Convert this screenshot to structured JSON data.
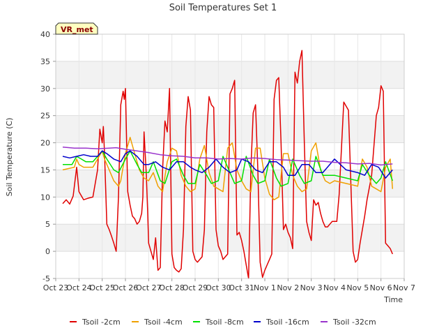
{
  "chart_data": {
    "type": "line",
    "title": "Soil Temperatures Set 1",
    "xlabel": "Time",
    "ylabel": "Soil Temperature (C)",
    "ylim": [
      -5,
      40
    ],
    "xlim": [
      0,
      15
    ],
    "yticks": [
      -5,
      0,
      5,
      10,
      15,
      20,
      25,
      30,
      35,
      40
    ],
    "xtick_labels": [
      "Oct 23",
      "Oct 24",
      "Oct 25",
      "Oct 26",
      "Oct 27",
      "Oct 28",
      "Oct 29",
      "Oct 30",
      "Oct 31",
      "Nov 1",
      "Nov 2",
      "Nov 3",
      "Nov 4",
      "Nov 5",
      "Nov 6",
      "Nov 7"
    ],
    "badge": "VR_met",
    "grid": true,
    "legend_position": "bottom",
    "series": [
      {
        "name": "Tsoil -2cm",
        "color": "#e00000",
        "x": [
          0.3,
          0.45,
          0.6,
          0.75,
          0.9,
          1.0,
          1.2,
          1.4,
          1.6,
          1.8,
          1.9,
          2.0,
          2.05,
          2.1,
          2.2,
          2.3,
          2.4,
          2.5,
          2.6,
          2.7,
          2.8,
          2.9,
          2.95,
          3.0,
          3.1,
          3.2,
          3.3,
          3.4,
          3.5,
          3.6,
          3.7,
          3.75,
          3.8,
          3.9,
          3.95,
          4.0,
          4.2,
          4.3,
          4.4,
          4.5,
          4.6,
          4.7,
          4.8,
          4.9,
          5.0,
          5.1,
          5.2,
          5.3,
          5.4,
          5.5,
          5.6,
          5.7,
          5.8,
          5.9,
          6.0,
          6.1,
          6.2,
          6.3,
          6.4,
          6.5,
          6.6,
          6.7,
          6.8,
          6.9,
          7.0,
          7.1,
          7.2,
          7.3,
          7.4,
          7.5,
          7.6,
          7.7,
          7.8,
          7.9,
          8.0,
          8.1,
          8.2,
          8.3,
          8.4,
          8.5,
          8.6,
          8.7,
          8.8,
          8.9,
          9.0,
          9.1,
          9.2,
          9.3,
          9.4,
          9.5,
          9.6,
          9.7,
          9.8,
          9.9,
          10.0,
          10.1,
          10.2,
          10.3,
          10.4,
          10.5,
          10.6,
          10.7,
          10.8,
          10.9,
          11.0,
          11.1,
          11.2,
          11.3,
          11.4,
          11.5,
          11.6,
          11.7,
          11.8,
          11.9,
          12.0,
          12.1,
          12.2,
          12.4,
          12.6,
          12.8,
          12.9,
          13.0,
          13.1,
          13.2,
          13.3,
          13.4,
          13.6,
          13.8,
          13.9,
          14.0,
          14.1,
          14.2,
          14.3,
          14.4,
          14.5
        ],
        "y": [
          8.8,
          9.5,
          8.7,
          10.2,
          15.5,
          11.0,
          9.5,
          9.8,
          10.0,
          15.0,
          22.5,
          20.0,
          23.0,
          18.0,
          5.0,
          4.0,
          2.8,
          1.5,
          0.0,
          10.0,
          27.0,
          29.5,
          28.0,
          30.0,
          11.0,
          8.5,
          6.5,
          6.0,
          5.0,
          5.5,
          7.0,
          10.0,
          22.0,
          14.0,
          8.0,
          1.5,
          -1.5,
          2.5,
          -3.5,
          -3.0,
          15.0,
          24.0,
          22.0,
          30.0,
          -0.5,
          -3.0,
          -3.5,
          -3.8,
          -3.2,
          4.0,
          23.0,
          28.5,
          26.0,
          0.0,
          -1.5,
          -2.0,
          -1.5,
          -1.0,
          4.0,
          22.0,
          28.5,
          27.0,
          26.5,
          4.0,
          1.0,
          0.0,
          -1.5,
          -1.0,
          -0.5,
          29.0,
          30.0,
          31.5,
          3.0,
          3.5,
          2.0,
          0.0,
          -2.5,
          -5.0,
          15.0,
          25.5,
          27.0,
          15.0,
          -2.0,
          -4.8,
          -3.5,
          -2.5,
          -1.5,
          -0.5,
          28.0,
          31.5,
          32.0,
          20.0,
          4.0,
          5.0,
          3.5,
          2.5,
          0.5,
          33.0,
          31.0,
          35.0,
          37.0,
          20.0,
          5.5,
          3.5,
          2.0,
          9.5,
          8.5,
          9.0,
          7.0,
          5.5,
          4.5,
          4.5,
          5.0,
          5.5,
          5.5,
          5.5,
          10.5,
          27.5,
          26.0,
          0.0,
          -2.0,
          -1.5,
          1.5,
          4.0,
          6.5,
          9.5,
          14.0,
          25.0,
          26.5,
          30.5,
          29.5,
          1.5,
          1.0,
          0.5,
          -0.5
        ]
      },
      {
        "name": "Tsoil -4cm",
        "color": "#f0a000",
        "x": [
          0.3,
          0.8,
          0.9,
          1.0,
          1.2,
          1.6,
          1.8,
          2.0,
          2.1,
          2.3,
          2.5,
          2.7,
          2.8,
          3.0,
          3.2,
          3.4,
          3.6,
          3.8,
          4.0,
          4.2,
          4.4,
          4.6,
          4.8,
          5.0,
          5.2,
          5.4,
          5.6,
          5.8,
          6.0,
          6.2,
          6.4,
          6.6,
          6.8,
          7.0,
          7.2,
          7.4,
          7.6,
          7.8,
          8.0,
          8.2,
          8.4,
          8.6,
          8.8,
          9.0,
          9.2,
          9.4,
          9.6,
          9.8,
          10.0,
          10.2,
          10.4,
          10.6,
          10.8,
          11.0,
          11.2,
          11.4,
          11.6,
          11.8,
          12.0,
          12.5,
          13.0,
          13.2,
          13.4,
          13.6,
          13.8,
          14.0,
          14.2,
          14.4,
          14.5
        ],
        "y": [
          15.0,
          15.5,
          17.0,
          16.0,
          15.5,
          15.5,
          17.0,
          18.5,
          17.0,
          15.0,
          13.0,
          12.0,
          13.0,
          18.0,
          21.0,
          18.0,
          15.0,
          13.5,
          13.0,
          14.5,
          12.0,
          11.0,
          16.5,
          19.0,
          18.5,
          14.0,
          12.0,
          11.0,
          11.5,
          17.0,
          19.5,
          14.5,
          12.0,
          11.5,
          11.0,
          19.0,
          20.0,
          15.0,
          13.0,
          11.5,
          11.0,
          19.0,
          19.0,
          13.5,
          10.5,
          9.5,
          10.0,
          18.0,
          18.0,
          14.0,
          12.0,
          11.0,
          11.5,
          18.5,
          20.0,
          15.0,
          13.0,
          12.5,
          13.0,
          12.5,
          12.0,
          17.0,
          15.5,
          12.0,
          11.5,
          11.0,
          15.5,
          17.0,
          11.5
        ]
      },
      {
        "name": "Tsoil -8cm",
        "color": "#00e000",
        "x": [
          0.3,
          0.7,
          0.9,
          1.1,
          1.3,
          1.6,
          1.8,
          2.0,
          2.2,
          2.5,
          2.7,
          3.0,
          3.2,
          3.5,
          3.7,
          4.0,
          4.2,
          4.5,
          4.7,
          5.0,
          5.2,
          5.5,
          5.7,
          6.0,
          6.2,
          6.5,
          6.7,
          7.0,
          7.2,
          7.5,
          7.7,
          8.0,
          8.2,
          8.5,
          8.7,
          9.0,
          9.2,
          9.5,
          9.7,
          10.0,
          10.2,
          10.5,
          10.7,
          11.0,
          11.2,
          11.5,
          12.0,
          12.5,
          13.0,
          13.2,
          13.5,
          13.8,
          14.0,
          14.2,
          14.5
        ],
        "y": [
          16.0,
          16.0,
          17.5,
          17.0,
          16.5,
          16.5,
          17.5,
          18.5,
          17.0,
          15.0,
          14.5,
          17.0,
          18.5,
          16.0,
          14.5,
          14.5,
          16.5,
          13.0,
          12.5,
          16.5,
          17.0,
          14.0,
          12.5,
          12.5,
          16.0,
          14.0,
          12.5,
          13.0,
          17.5,
          14.5,
          12.5,
          13.0,
          17.5,
          14.0,
          12.5,
          13.0,
          17.0,
          13.5,
          12.0,
          12.5,
          17.0,
          14.0,
          12.5,
          13.0,
          17.5,
          14.0,
          14.0,
          13.5,
          13.0,
          16.0,
          14.0,
          12.5,
          13.5,
          16.5,
          13.0
        ]
      },
      {
        "name": "Tsoil -16cm",
        "color": "#0000cc",
        "x": [
          0.3,
          0.6,
          0.9,
          1.2,
          1.5,
          1.8,
          2.0,
          2.2,
          2.5,
          2.8,
          3.0,
          3.2,
          3.5,
          3.8,
          4.0,
          4.3,
          4.6,
          4.9,
          5.2,
          5.5,
          5.8,
          6.0,
          6.3,
          6.6,
          6.9,
          7.2,
          7.5,
          7.8,
          8.0,
          8.3,
          8.6,
          8.9,
          9.2,
          9.5,
          9.8,
          10.0,
          10.3,
          10.6,
          10.9,
          11.2,
          11.5,
          12.0,
          12.5,
          13.0,
          13.3,
          13.6,
          13.9,
          14.2,
          14.5
        ],
        "y": [
          17.5,
          17.2,
          17.5,
          17.8,
          17.5,
          17.5,
          18.5,
          18.0,
          17.0,
          16.5,
          18.0,
          18.5,
          17.5,
          16.0,
          16.0,
          16.5,
          15.5,
          15.0,
          16.5,
          16.5,
          15.5,
          15.0,
          14.5,
          15.5,
          17.0,
          15.5,
          14.5,
          15.0,
          17.0,
          16.5,
          15.0,
          14.5,
          16.5,
          16.5,
          15.5,
          14.0,
          14.0,
          16.0,
          16.0,
          14.5,
          14.5,
          17.0,
          15.0,
          14.5,
          14.0,
          16.0,
          15.5,
          13.5,
          15.0
        ]
      },
      {
        "name": "Tsoil -32cm",
        "color": "#9933cc",
        "x": [
          0.3,
          0.8,
          1.3,
          1.8,
          2.3,
          2.6,
          3.0,
          3.5,
          4.0,
          4.5,
          5.0,
          5.5,
          6.0,
          6.5,
          7.0,
          7.5,
          8.0,
          8.5,
          9.0,
          9.5,
          10.0,
          10.5,
          11.0,
          11.5,
          12.0,
          12.5,
          13.0,
          13.5,
          14.0,
          14.5
        ],
        "y": [
          19.2,
          19.0,
          19.0,
          18.9,
          19.0,
          19.1,
          18.8,
          18.5,
          18.2,
          17.8,
          17.6,
          17.5,
          17.2,
          17.2,
          17.0,
          17.1,
          17.0,
          17.2,
          17.1,
          16.9,
          16.8,
          16.7,
          16.6,
          16.6,
          16.4,
          16.3,
          16.1,
          16.2,
          15.9,
          16.1
        ]
      }
    ]
  }
}
